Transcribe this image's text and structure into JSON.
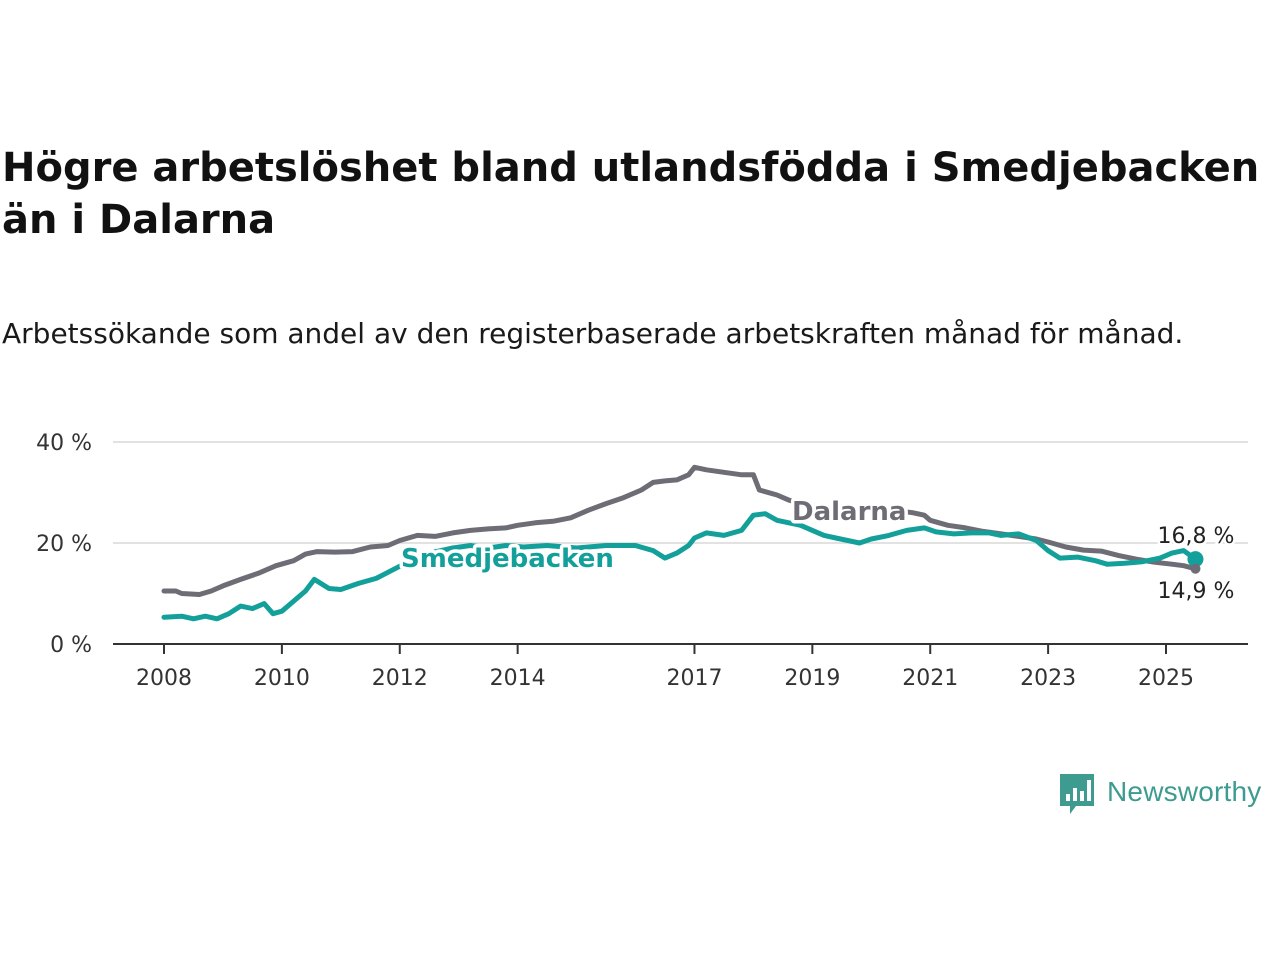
{
  "title": "Högre arbetslöshet bland utlandsfödda i Smedjebacken än i Dalarna",
  "subtitle": "Arbetssökande som andel av den registerbaserade arbetskraften månad för månad.",
  "brand": {
    "name": "Newsworthy",
    "icon": "newsworthy-bar-chart-icon",
    "color": "#3e9b90"
  },
  "chart_data": {
    "type": "line",
    "ylim": [
      0,
      40
    ],
    "yticks": [
      0,
      20,
      40
    ],
    "ytick_labels": [
      "0 %",
      "20 %",
      "40 %"
    ],
    "xlim": [
      2008,
      2025.7
    ],
    "xticks": [
      2008,
      2010,
      2012,
      2014,
      2017,
      2019,
      2021,
      2023,
      2025
    ],
    "xtick_labels": [
      "2008",
      "2010",
      "2012",
      "2014",
      "2017",
      "2019",
      "2021",
      "2023",
      "2025"
    ],
    "grid": true,
    "series": [
      {
        "name": "Dalarna",
        "color": "#6e6c75",
        "end_label": "14,9 %",
        "points": [
          [
            2008.0,
            10.5
          ],
          [
            2008.2,
            10.5
          ],
          [
            2008.3,
            10.0
          ],
          [
            2008.6,
            9.8
          ],
          [
            2008.8,
            10.5
          ],
          [
            2009.0,
            11.5
          ],
          [
            2009.3,
            12.8
          ],
          [
            2009.6,
            14.0
          ],
          [
            2009.9,
            15.5
          ],
          [
            2010.2,
            16.5
          ],
          [
            2010.4,
            17.8
          ],
          [
            2010.6,
            18.3
          ],
          [
            2010.9,
            18.2
          ],
          [
            2011.2,
            18.3
          ],
          [
            2011.5,
            19.2
          ],
          [
            2011.8,
            19.5
          ],
          [
            2012.0,
            20.5
          ],
          [
            2012.3,
            21.5
          ],
          [
            2012.6,
            21.3
          ],
          [
            2012.9,
            22.0
          ],
          [
            2013.2,
            22.5
          ],
          [
            2013.5,
            22.8
          ],
          [
            2013.8,
            23.0
          ],
          [
            2014.0,
            23.5
          ],
          [
            2014.3,
            24.0
          ],
          [
            2014.6,
            24.3
          ],
          [
            2014.9,
            25.0
          ],
          [
            2015.2,
            26.5
          ],
          [
            2015.5,
            27.8
          ],
          [
            2015.8,
            29.0
          ],
          [
            2016.1,
            30.5
          ],
          [
            2016.3,
            32.0
          ],
          [
            2016.5,
            32.3
          ],
          [
            2016.7,
            32.5
          ],
          [
            2016.9,
            33.5
          ],
          [
            2017.0,
            35.0
          ],
          [
            2017.2,
            34.5
          ],
          [
            2017.5,
            34.0
          ],
          [
            2017.8,
            33.5
          ],
          [
            2018.0,
            33.5
          ],
          [
            2018.1,
            30.5
          ],
          [
            2018.4,
            29.5
          ],
          [
            2018.6,
            28.5
          ],
          [
            2018.9,
            27.5
          ],
          [
            2019.2,
            27.0
          ],
          [
            2019.5,
            26.5
          ],
          [
            2019.8,
            26.5
          ],
          [
            2020.0,
            26.5
          ],
          [
            2020.2,
            26.5
          ],
          [
            2020.5,
            26.3
          ],
          [
            2020.7,
            26.0
          ],
          [
            2020.9,
            25.5
          ],
          [
            2021.0,
            24.5
          ],
          [
            2021.3,
            23.5
          ],
          [
            2021.6,
            23.0
          ],
          [
            2021.9,
            22.3
          ],
          [
            2022.2,
            21.8
          ],
          [
            2022.5,
            21.3
          ],
          [
            2022.8,
            20.8
          ],
          [
            2023.0,
            20.2
          ],
          [
            2023.3,
            19.2
          ],
          [
            2023.6,
            18.6
          ],
          [
            2023.9,
            18.4
          ],
          [
            2024.2,
            17.5
          ],
          [
            2024.5,
            16.8
          ],
          [
            2024.8,
            16.2
          ],
          [
            2025.1,
            15.8
          ],
          [
            2025.3,
            15.5
          ],
          [
            2025.5,
            14.9
          ]
        ]
      },
      {
        "name": "Smedjebacken",
        "color": "#13a09a",
        "end_label": "16,8 %",
        "points": [
          [
            2008.0,
            5.3
          ],
          [
            2008.3,
            5.5
          ],
          [
            2008.5,
            5.0
          ],
          [
            2008.7,
            5.5
          ],
          [
            2008.9,
            5.0
          ],
          [
            2009.1,
            6.0
          ],
          [
            2009.3,
            7.5
          ],
          [
            2009.5,
            7.0
          ],
          [
            2009.7,
            8.0
          ],
          [
            2009.85,
            6.0
          ],
          [
            2010.0,
            6.5
          ],
          [
            2010.2,
            8.5
          ],
          [
            2010.4,
            10.5
          ],
          [
            2010.55,
            12.8
          ],
          [
            2010.8,
            11.0
          ],
          [
            2011.0,
            10.8
          ],
          [
            2011.3,
            12.0
          ],
          [
            2011.6,
            13.0
          ],
          [
            2011.85,
            14.5
          ],
          [
            2012.1,
            16.0
          ],
          [
            2012.3,
            17.0
          ],
          [
            2012.5,
            18.0
          ],
          [
            2012.7,
            18.5
          ],
          [
            2012.9,
            19.0
          ],
          [
            2013.2,
            19.5
          ],
          [
            2013.5,
            19.0
          ],
          [
            2013.8,
            19.5
          ],
          [
            2014.1,
            19.2
          ],
          [
            2014.5,
            19.5
          ],
          [
            2015.0,
            19.0
          ],
          [
            2015.5,
            19.5
          ],
          [
            2016.0,
            19.5
          ],
          [
            2016.3,
            18.5
          ],
          [
            2016.5,
            17.0
          ],
          [
            2016.7,
            18.0
          ],
          [
            2016.9,
            19.5
          ],
          [
            2017.0,
            21.0
          ],
          [
            2017.2,
            22.0
          ],
          [
            2017.5,
            21.5
          ],
          [
            2017.8,
            22.5
          ],
          [
            2018.0,
            25.5
          ],
          [
            2018.2,
            25.8
          ],
          [
            2018.4,
            24.5
          ],
          [
            2018.6,
            24.0
          ],
          [
            2018.8,
            23.5
          ],
          [
            2019.0,
            22.5
          ],
          [
            2019.2,
            21.5
          ],
          [
            2019.4,
            21.0
          ],
          [
            2019.6,
            20.5
          ],
          [
            2019.8,
            20.0
          ],
          [
            2020.0,
            20.8
          ],
          [
            2020.3,
            21.5
          ],
          [
            2020.6,
            22.5
          ],
          [
            2020.9,
            23.0
          ],
          [
            2021.1,
            22.2
          ],
          [
            2021.4,
            21.8
          ],
          [
            2021.7,
            22.0
          ],
          [
            2022.0,
            22.0
          ],
          [
            2022.2,
            21.5
          ],
          [
            2022.5,
            21.8
          ],
          [
            2022.8,
            20.5
          ],
          [
            2023.0,
            18.5
          ],
          [
            2023.2,
            17.0
          ],
          [
            2023.5,
            17.2
          ],
          [
            2023.8,
            16.5
          ],
          [
            2024.0,
            15.8
          ],
          [
            2024.3,
            16.0
          ],
          [
            2024.6,
            16.3
          ],
          [
            2024.9,
            17.0
          ],
          [
            2025.1,
            18.0
          ],
          [
            2025.3,
            18.5
          ],
          [
            2025.5,
            16.8
          ]
        ]
      }
    ]
  }
}
